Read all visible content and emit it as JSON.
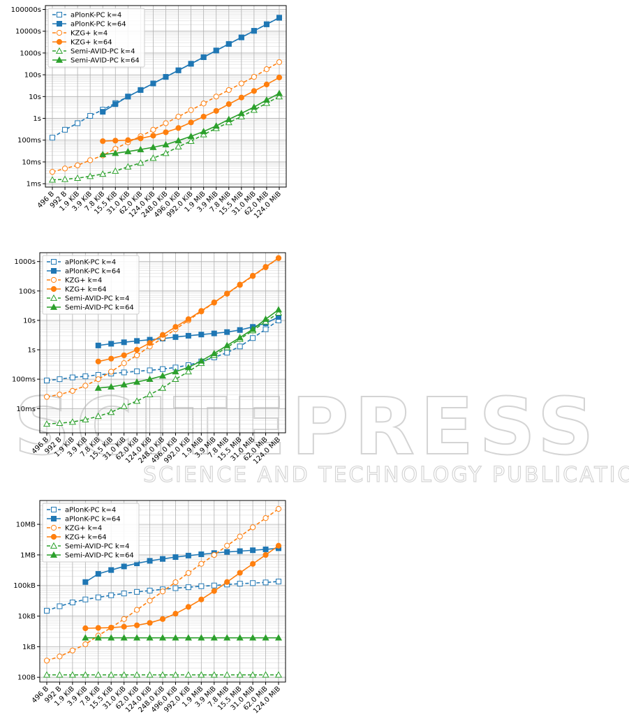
{
  "colors": {
    "blue": "#1f77b4",
    "orange": "#ff7f0e",
    "green": "#2ca02c",
    "grid": "#b0b0b0",
    "watermark": "#d4d4d4"
  },
  "watermark": {
    "main": "SCITEPRESS",
    "sub": "SCIENCE AND TECHNOLOGY PUBLICATIONS"
  },
  "chart_data": [
    {
      "type": "line",
      "yscale": "log",
      "ylim_seconds": [
        0.0007,
        150000
      ],
      "y_ticks": [
        0.001,
        0.01,
        0.1,
        1,
        10,
        100,
        1000,
        10000,
        100000
      ],
      "y_tick_labels": [
        "1ms",
        "10ms",
        "100ms",
        "1s",
        "10s",
        "100s",
        "1000s",
        "10000s",
        "100000s"
      ],
      "categories": [
        "496 B",
        "992 B",
        "1.9 KiB",
        "3.9 KiB",
        "7.8 KiB",
        "15.5 KiB",
        "31.0 KiB",
        "62.0 KiB",
        "124.0 KiB",
        "248.0 KiB",
        "496.0 KiB",
        "992.0 KiB",
        "1.9 MiB",
        "3.9 MiB",
        "7.8 MiB",
        "15.5 MiB",
        "31.0 MiB",
        "62.0 MiB",
        "124.0 MiB"
      ],
      "grid": true,
      "legend": "upper-left",
      "series": [
        {
          "name": "aPlonK-PC k=4",
          "color": "#1f77b4",
          "dashed": true,
          "marker": "square",
          "filled": false,
          "values": [
            0.13,
            0.3,
            0.6,
            1.3,
            2.5,
            5,
            10,
            20,
            40,
            80,
            160,
            320,
            640,
            1300,
            2600,
            5200,
            10400,
            20800,
            41600
          ]
        },
        {
          "name": "aPlonK-PC k=64",
          "color": "#1f77b4",
          "dashed": false,
          "marker": "square",
          "filled": true,
          "values": [
            null,
            null,
            null,
            null,
            2,
            4.5,
            10,
            20,
            40,
            80,
            160,
            320,
            640,
            1300,
            2600,
            5200,
            10400,
            20800,
            41600
          ]
        },
        {
          "name": "KZG+ k=4",
          "color": "#ff7f0e",
          "dashed": true,
          "marker": "circle",
          "filled": false,
          "values": [
            0.0035,
            0.005,
            0.007,
            0.012,
            0.02,
            0.04,
            0.08,
            0.15,
            0.3,
            0.6,
            1.2,
            2.4,
            4.8,
            10,
            20,
            40,
            80,
            180,
            380
          ]
        },
        {
          "name": "KZG+ k=64",
          "color": "#ff7f0e",
          "dashed": false,
          "marker": "circle",
          "filled": true,
          "values": [
            null,
            null,
            null,
            null,
            0.09,
            0.095,
            0.1,
            0.12,
            0.16,
            0.23,
            0.36,
            0.65,
            1.2,
            2.2,
            4.5,
            9,
            18,
            36,
            75
          ]
        },
        {
          "name": "Semi-AVID-PC k=4",
          "color": "#2ca02c",
          "dashed": true,
          "marker": "triangle",
          "filled": false,
          "values": [
            0.0015,
            0.0016,
            0.0018,
            0.0022,
            0.0028,
            0.0038,
            0.006,
            0.009,
            0.015,
            0.025,
            0.05,
            0.09,
            0.18,
            0.35,
            0.65,
            1.2,
            2.4,
            5,
            10
          ]
        },
        {
          "name": "Semi-AVID-PC k=64",
          "color": "#2ca02c",
          "dashed": false,
          "marker": "triangle",
          "filled": true,
          "values": [
            null,
            null,
            null,
            null,
            0.022,
            0.025,
            0.03,
            0.037,
            0.047,
            0.062,
            0.095,
            0.15,
            0.25,
            0.45,
            0.9,
            1.7,
            3.3,
            7,
            14
          ]
        }
      ]
    },
    {
      "type": "line",
      "yscale": "log",
      "ylim_seconds": [
        0.0015,
        2000
      ],
      "y_ticks": [
        0.01,
        0.1,
        1,
        10,
        100,
        1000
      ],
      "y_tick_labels": [
        "10ms",
        "100ms",
        "1s",
        "10s",
        "100s",
        "1000s"
      ],
      "categories": [
        "496 B",
        "992 B",
        "1.9 KiB",
        "3.9 KiB",
        "7.8 KiB",
        "15.5 KiB",
        "31.0 KiB",
        "62.0 KiB",
        "124.0 KiB",
        "248.0 KiB",
        "496.0 KiB",
        "992.0 KiB",
        "1.9 MiB",
        "3.9 MiB",
        "7.8 MiB",
        "15.5 MiB",
        "31.0 MiB",
        "62.0 MiB",
        "124.0 MiB"
      ],
      "grid": true,
      "legend": "upper-left",
      "series": [
        {
          "name": "aPlonK-PC k=4",
          "color": "#1f77b4",
          "dashed": true,
          "marker": "square",
          "filled": false,
          "values": [
            0.09,
            0.1,
            0.115,
            0.125,
            0.14,
            0.155,
            0.17,
            0.185,
            0.2,
            0.22,
            0.25,
            0.3,
            0.4,
            0.55,
            0.8,
            1.3,
            2.5,
            5,
            10
          ]
        },
        {
          "name": "aPlonK-PC k=64",
          "color": "#1f77b4",
          "dashed": false,
          "marker": "square",
          "filled": true,
          "values": [
            null,
            null,
            null,
            null,
            1.4,
            1.6,
            1.8,
            2.0,
            2.2,
            2.4,
            2.7,
            3.0,
            3.3,
            3.6,
            4.0,
            4.7,
            6,
            8,
            13
          ]
        },
        {
          "name": "KZG+ k=4",
          "color": "#ff7f0e",
          "dashed": true,
          "marker": "circle",
          "filled": false,
          "values": [
            0.025,
            0.03,
            0.04,
            0.06,
            0.1,
            0.18,
            0.35,
            0.65,
            1.3,
            2.5,
            5,
            10,
            20,
            40,
            80,
            160,
            320,
            640,
            1300
          ]
        },
        {
          "name": "KZG+ k=64",
          "color": "#ff7f0e",
          "dashed": false,
          "marker": "circle",
          "filled": true,
          "values": [
            null,
            null,
            null,
            null,
            0.4,
            0.5,
            0.65,
            1.0,
            1.7,
            3.2,
            6,
            11,
            21,
            41,
            82,
            165,
            330,
            660,
            1320
          ]
        },
        {
          "name": "Semi-AVID-PC k=4",
          "color": "#2ca02c",
          "dashed": true,
          "marker": "triangle",
          "filled": false,
          "values": [
            0.003,
            0.0032,
            0.0035,
            0.0042,
            0.0055,
            0.0075,
            0.012,
            0.018,
            0.03,
            0.05,
            0.1,
            0.18,
            0.35,
            0.65,
            1.2,
            2.3,
            4.5,
            9,
            18
          ]
        },
        {
          "name": "Semi-AVID-PC k=64",
          "color": "#2ca02c",
          "dashed": false,
          "marker": "triangle",
          "filled": true,
          "values": [
            null,
            null,
            null,
            null,
            0.05,
            0.055,
            0.065,
            0.08,
            0.1,
            0.13,
            0.18,
            0.25,
            0.42,
            0.75,
            1.4,
            2.6,
            5,
            11,
            23
          ]
        }
      ]
    },
    {
      "type": "line",
      "yscale": "log",
      "ylim_bytes": [
        70,
        60000000
      ],
      "y_ticks": [
        100,
        1000,
        10000,
        100000,
        1000000,
        10000000
      ],
      "y_tick_labels": [
        "100B",
        "1kB",
        "10kB",
        "100kB",
        "1MB",
        "10MB"
      ],
      "categories": [
        "496 B",
        "992 B",
        "1.9 KiB",
        "3.9 KiB",
        "7.8 KiB",
        "15.5 KiB",
        "31.0 KiB",
        "62.0 KiB",
        "124.0 KiB",
        "248.0 KiB",
        "496.0 KiB",
        "992.0 KiB",
        "1.9 MiB",
        "3.9 MiB",
        "7.8 MiB",
        "15.5 MiB",
        "31.0 MiB",
        "62.0 MiB",
        "124.0 MiB"
      ],
      "grid": true,
      "legend": "upper-left",
      "series": [
        {
          "name": "aPlonK-PC k=4",
          "color": "#1f77b4",
          "dashed": true,
          "marker": "square",
          "filled": false,
          "values": [
            15000,
            21000,
            28000,
            35000,
            41000,
            48000,
            55000,
            62000,
            68000,
            75000,
            82000,
            88000,
            95000,
            100000,
            108000,
            115000,
            120000,
            126000,
            135000
          ]
        },
        {
          "name": "aPlonK-PC k=64",
          "color": "#1f77b4",
          "dashed": false,
          "marker": "square",
          "filled": true,
          "values": [
            null,
            null,
            null,
            130000,
            240000,
            320000,
            420000,
            530000,
            640000,
            740000,
            850000,
            950000,
            1050000,
            1150000,
            1250000,
            1330000,
            1420000,
            1520000,
            1650000
          ]
        },
        {
          "name": "KZG+ k=4",
          "color": "#ff7f0e",
          "dashed": true,
          "marker": "circle",
          "filled": false,
          "values": [
            350,
            480,
            750,
            1200,
            2300,
            4200,
            8000,
            16000,
            32000,
            64000,
            128000,
            256000,
            512000,
            1000000,
            2000000,
            4000000,
            8000000,
            16000000,
            32000000
          ]
        },
        {
          "name": "KZG+ k=64",
          "color": "#ff7f0e",
          "dashed": false,
          "marker": "circle",
          "filled": true,
          "values": [
            null,
            null,
            null,
            4000,
            4100,
            4200,
            4500,
            5000,
            6000,
            8000,
            12000,
            20000,
            35000,
            66000,
            130000,
            260000,
            510000,
            1000000,
            2000000
          ]
        },
        {
          "name": "Semi-AVID-PC k=4",
          "color": "#2ca02c",
          "dashed": true,
          "marker": "triangle",
          "filled": false,
          "values": [
            120,
            120,
            120,
            120,
            120,
            120,
            120,
            120,
            120,
            120,
            120,
            120,
            120,
            120,
            120,
            120,
            120,
            120,
            120
          ]
        },
        {
          "name": "Semi-AVID-PC k=64",
          "color": "#2ca02c",
          "dashed": false,
          "marker": "triangle",
          "filled": true,
          "values": [
            null,
            null,
            null,
            1950,
            1950,
            1950,
            1950,
            1950,
            1950,
            1950,
            1950,
            1950,
            1950,
            1950,
            1950,
            1950,
            1950,
            1950,
            1950
          ]
        }
      ]
    }
  ]
}
